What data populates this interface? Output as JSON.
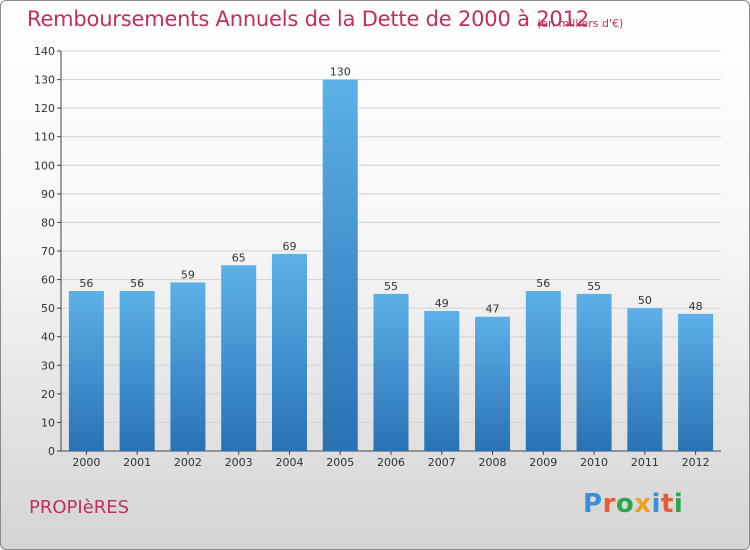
{
  "title": "Remboursements Annuels de la Dette de 2000 à 2012",
  "unit_note": "(en milliers d'€)",
  "commune": "PROPIèRES",
  "logo": {
    "text": "Proxiti",
    "letters": [
      {
        "ch": "P",
        "color": "#3a8fd8"
      },
      {
        "ch": "r",
        "color": "#e85a3a"
      },
      {
        "ch": "o",
        "color": "#2aa84a"
      },
      {
        "ch": "x",
        "color": "#f0a020"
      },
      {
        "ch": "i",
        "color": "#3a8fd8"
      },
      {
        "ch": "t",
        "color": "#e85a3a"
      },
      {
        "ch": "i",
        "color": "#2aa84a"
      }
    ]
  },
  "colors": {
    "title": "#c0305a",
    "bar_top": "#5db0e8",
    "bar_bottom": "#2872b4"
  },
  "chart_data": {
    "type": "bar",
    "categories": [
      "2000",
      "2001",
      "2002",
      "2003",
      "2004",
      "2005",
      "2006",
      "2007",
      "2008",
      "2009",
      "2010",
      "2011",
      "2012"
    ],
    "values": [
      56,
      56,
      59,
      65,
      69,
      130,
      55,
      49,
      47,
      56,
      55,
      50,
      48
    ],
    "ylim": [
      0,
      140
    ],
    "yticks": [
      0,
      10,
      20,
      30,
      40,
      50,
      60,
      70,
      80,
      90,
      100,
      110,
      120,
      130,
      140
    ],
    "grid": true,
    "data_labels": true
  }
}
